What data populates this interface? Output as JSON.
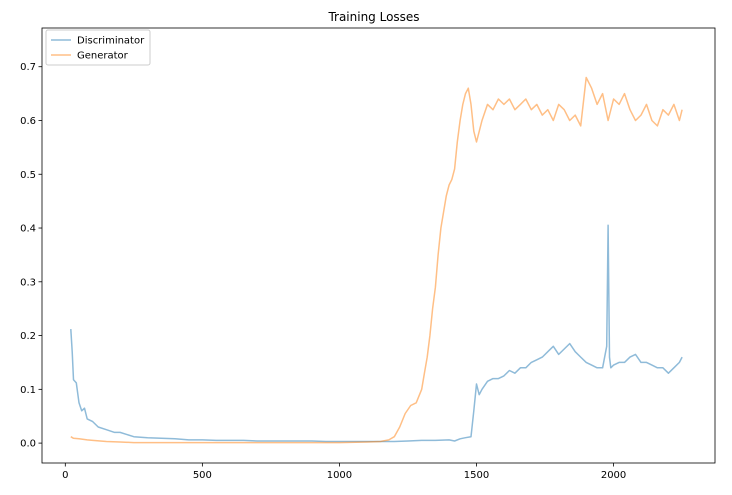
{
  "chart_data": {
    "type": "line",
    "title": "Training Losses",
    "xlabel": "",
    "ylabel": "",
    "xlim": [
      -85,
      2370
    ],
    "ylim": [
      -0.037,
      0.772
    ],
    "xticks": [
      0,
      500,
      1000,
      1500,
      2000
    ],
    "yticks": [
      0.0,
      0.1,
      0.2,
      0.3,
      0.4,
      0.5,
      0.6,
      0.7
    ],
    "ytick_labels": [
      "0.0",
      "0.1",
      "0.2",
      "0.3",
      "0.4",
      "0.5",
      "0.6",
      "0.7"
    ],
    "grid": false,
    "legend": "upper-left",
    "series": [
      {
        "name": "Discriminator",
        "color": "#1f77b4",
        "alpha": 0.5,
        "x": [
          20,
          25,
          30,
          40,
          50,
          60,
          70,
          80,
          100,
          120,
          150,
          180,
          200,
          250,
          300,
          350,
          400,
          450,
          500,
          550,
          600,
          650,
          700,
          750,
          800,
          850,
          900,
          950,
          1000,
          1050,
          1100,
          1150,
          1200,
          1250,
          1300,
          1350,
          1400,
          1420,
          1440,
          1460,
          1480,
          1490,
          1500,
          1510,
          1520,
          1540,
          1560,
          1580,
          1600,
          1620,
          1640,
          1660,
          1680,
          1700,
          1720,
          1740,
          1760,
          1780,
          1800,
          1820,
          1840,
          1860,
          1880,
          1900,
          1920,
          1940,
          1960,
          1975,
          1980,
          1985,
          1990,
          2000,
          2020,
          2040,
          2060,
          2080,
          2100,
          2120,
          2140,
          2160,
          2180,
          2200,
          2220,
          2240,
          2250
        ],
        "y": [
          0.212,
          0.17,
          0.118,
          0.112,
          0.075,
          0.06,
          0.065,
          0.045,
          0.04,
          0.03,
          0.025,
          0.02,
          0.02,
          0.012,
          0.01,
          0.009,
          0.008,
          0.006,
          0.006,
          0.005,
          0.005,
          0.005,
          0.004,
          0.004,
          0.004,
          0.004,
          0.004,
          0.003,
          0.003,
          0.003,
          0.003,
          0.003,
          0.003,
          0.004,
          0.005,
          0.005,
          0.006,
          0.004,
          0.008,
          0.01,
          0.012,
          0.06,
          0.11,
          0.09,
          0.1,
          0.115,
          0.12,
          0.12,
          0.125,
          0.135,
          0.13,
          0.14,
          0.14,
          0.15,
          0.155,
          0.16,
          0.17,
          0.18,
          0.165,
          0.175,
          0.185,
          0.17,
          0.16,
          0.15,
          0.145,
          0.14,
          0.14,
          0.18,
          0.405,
          0.16,
          0.14,
          0.145,
          0.15,
          0.15,
          0.16,
          0.165,
          0.15,
          0.15,
          0.145,
          0.14,
          0.14,
          0.13,
          0.14,
          0.15,
          0.16
        ]
      },
      {
        "name": "Generator",
        "color": "#ff7f0e",
        "alpha": 0.5,
        "x": [
          20,
          30,
          50,
          80,
          100,
          150,
          200,
          250,
          300,
          400,
          500,
          600,
          700,
          800,
          900,
          1000,
          1100,
          1150,
          1180,
          1200,
          1220,
          1240,
          1260,
          1280,
          1300,
          1310,
          1320,
          1330,
          1340,
          1350,
          1360,
          1370,
          1380,
          1390,
          1400,
          1410,
          1420,
          1430,
          1440,
          1450,
          1460,
          1470,
          1480,
          1490,
          1500,
          1520,
          1540,
          1560,
          1580,
          1600,
          1620,
          1640,
          1660,
          1680,
          1700,
          1720,
          1740,
          1760,
          1780,
          1800,
          1820,
          1840,
          1860,
          1880,
          1900,
          1920,
          1940,
          1960,
          1980,
          2000,
          2020,
          2040,
          2060,
          2080,
          2100,
          2120,
          2140,
          2160,
          2180,
          2200,
          2220,
          2240,
          2250
        ],
        "y": [
          0.012,
          0.009,
          0.008,
          0.006,
          0.005,
          0.003,
          0.002,
          0.001,
          0.001,
          0.001,
          0.001,
          0.001,
          0.001,
          0.001,
          0.001,
          0.001,
          0.002,
          0.003,
          0.006,
          0.012,
          0.03,
          0.055,
          0.07,
          0.075,
          0.1,
          0.13,
          0.16,
          0.2,
          0.25,
          0.29,
          0.35,
          0.4,
          0.43,
          0.46,
          0.48,
          0.49,
          0.51,
          0.56,
          0.6,
          0.63,
          0.65,
          0.66,
          0.63,
          0.58,
          0.56,
          0.6,
          0.63,
          0.62,
          0.64,
          0.63,
          0.64,
          0.62,
          0.63,
          0.64,
          0.62,
          0.63,
          0.61,
          0.62,
          0.6,
          0.63,
          0.62,
          0.6,
          0.61,
          0.59,
          0.68,
          0.66,
          0.63,
          0.65,
          0.6,
          0.64,
          0.63,
          0.65,
          0.62,
          0.6,
          0.61,
          0.63,
          0.6,
          0.59,
          0.62,
          0.61,
          0.63,
          0.6,
          0.62
        ]
      }
    ]
  }
}
